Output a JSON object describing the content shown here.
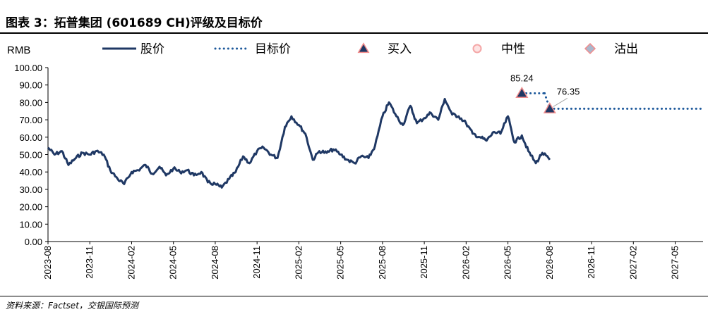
{
  "header": {
    "figure_title": "图表 3：拓普集团 (601689 CH)评级及目标价"
  },
  "footer": {
    "source": "资料来源：Factset，交银国际预测"
  },
  "chart_data": {
    "type": "line",
    "unit_label": "RMB",
    "ylim": [
      0,
      100
    ],
    "y_ticks": [
      "0.00",
      "10.00",
      "20.00",
      "30.00",
      "40.00",
      "50.00",
      "60.00",
      "70.00",
      "80.00",
      "90.00",
      "100.00"
    ],
    "x_ticks": [
      "2023-08",
      "2023-11",
      "2024-02",
      "2024-05",
      "2024-08",
      "2024-11",
      "2025-02",
      "2025-05",
      "2025-08",
      "2025-11",
      "2026-02",
      "2026-05",
      "2026-08",
      "2026-11",
      "2027-02",
      "2027-05"
    ],
    "x_range": [
      "2023-08",
      "2027-07"
    ],
    "grid": false,
    "legend": {
      "placement": "top",
      "items": [
        {
          "key": "price",
          "label": "股价",
          "style": "solid-line",
          "color": "#1F3864"
        },
        {
          "key": "target",
          "label": "目标价",
          "style": "dotted-line",
          "color": "#1F5A9C"
        },
        {
          "key": "buy",
          "label": "买入",
          "style": "triangle",
          "color": "#1F3864"
        },
        {
          "key": "neutral",
          "label": "中性",
          "style": "circle",
          "color": "#F4A6A6"
        },
        {
          "key": "sell",
          "label": "沽出",
          "style": "diamond",
          "color": "#A9B7CC"
        }
      ]
    },
    "series": [
      {
        "name": "股价",
        "color": "#1F3864",
        "x": [
          "2023-08",
          "2023-08-15",
          "2023-09",
          "2023-09-15",
          "2023-10",
          "2023-10-15",
          "2023-11",
          "2023-11-15",
          "2023-12",
          "2023-12-15",
          "2024-01",
          "2024-01-15",
          "2024-02",
          "2024-02-15",
          "2024-03",
          "2024-03-15",
          "2024-04",
          "2024-04-15",
          "2024-05",
          "2024-05-15",
          "2024-06",
          "2024-06-15",
          "2024-07",
          "2024-07-15",
          "2024-08",
          "2024-08-15",
          "2024-09",
          "2024-09-15",
          "2024-10",
          "2024-10-15",
          "2024-11",
          "2024-11-15",
          "2024-12",
          "2024-12-15",
          "2025-01",
          "2025-01-15",
          "2025-02",
          "2025-02-15",
          "2025-03",
          "2025-03-15",
          "2025-04",
          "2025-04-15",
          "2025-05",
          "2025-05-15",
          "2025-06",
          "2025-06-15",
          "2025-07",
          "2025-07-15",
          "2025-08",
          "2025-08-15",
          "2025-09",
          "2025-09-15",
          "2025-10",
          "2025-10-15",
          "2025-11",
          "2025-11-15",
          "2025-12",
          "2025-12-15",
          "2026-01",
          "2026-01-15",
          "2026-02",
          "2026-02-15",
          "2026-03",
          "2026-03-15",
          "2026-04",
          "2026-04-15",
          "2026-05",
          "2026-05-15",
          "2026-06",
          "2026-06-15",
          "2026-07",
          "2026-07-15",
          "2026-08"
        ],
        "values": [
          54,
          50,
          52,
          44,
          48,
          51,
          50,
          52,
          50,
          41,
          36,
          33,
          40,
          41,
          44,
          39,
          43,
          38,
          42,
          40,
          41,
          38,
          40,
          34,
          33,
          31,
          36,
          40,
          49,
          45,
          52,
          54,
          50,
          48,
          66,
          72,
          67,
          62,
          47,
          52,
          51,
          53,
          50,
          47,
          45,
          49,
          48,
          55,
          72,
          80,
          72,
          67,
          78,
          68,
          71,
          74,
          70,
          82,
          73,
          72,
          68,
          62,
          60,
          58,
          63,
          62,
          72,
          57,
          61,
          52,
          45,
          51,
          47
        ]
      },
      {
        "name": "目标价",
        "color": "#1F5A9C",
        "segments": [
          {
            "x": [
              "2026-06",
              "2026-07-20"
            ],
            "values": [
              85.24,
              85.24
            ]
          },
          {
            "x": [
              "2026-08",
              "2027-07"
            ],
            "values": [
              76.35,
              76.35
            ]
          }
        ]
      }
    ],
    "markers": [
      {
        "type": "buy",
        "x": "2026-06",
        "value": 85.24,
        "label": "85.24"
      },
      {
        "type": "buy",
        "x": "2026-08",
        "value": 76.35,
        "label": "76.35"
      }
    ]
  }
}
